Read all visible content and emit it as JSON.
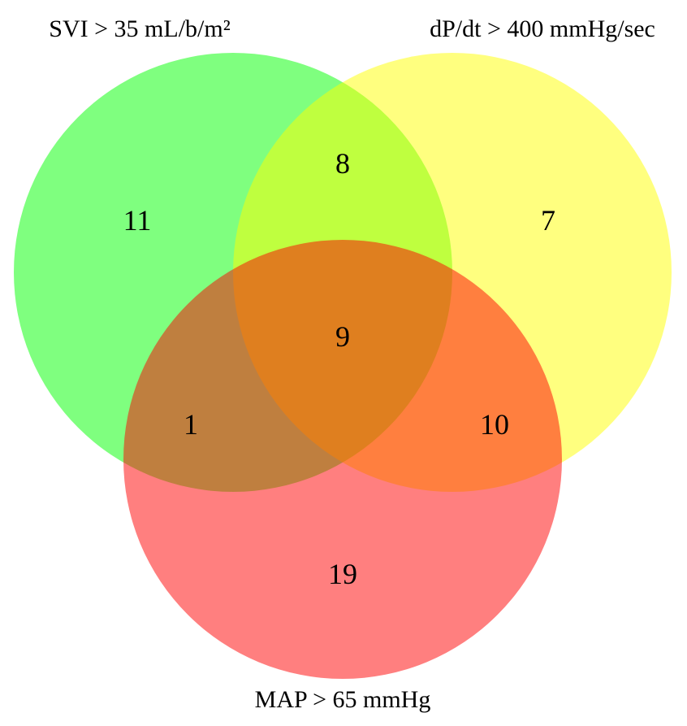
{
  "sets": {
    "svi": {
      "label": "SVI > 35 mL/b/m²",
      "color": "#00ff00"
    },
    "dpdt": {
      "label": "dP/dt > 400 mmHg/sec",
      "color": "#ffff00"
    },
    "map": {
      "label": "MAP > 65 mmHg",
      "color": "#ff0000"
    }
  },
  "regions": {
    "svi_only": "11",
    "dpdt_only": "7",
    "map_only": "19",
    "svi_dpdt": "8",
    "svi_map": "1",
    "dpdt_map": "10",
    "all_three": "9"
  },
  "circle_opacity": 0.5
}
